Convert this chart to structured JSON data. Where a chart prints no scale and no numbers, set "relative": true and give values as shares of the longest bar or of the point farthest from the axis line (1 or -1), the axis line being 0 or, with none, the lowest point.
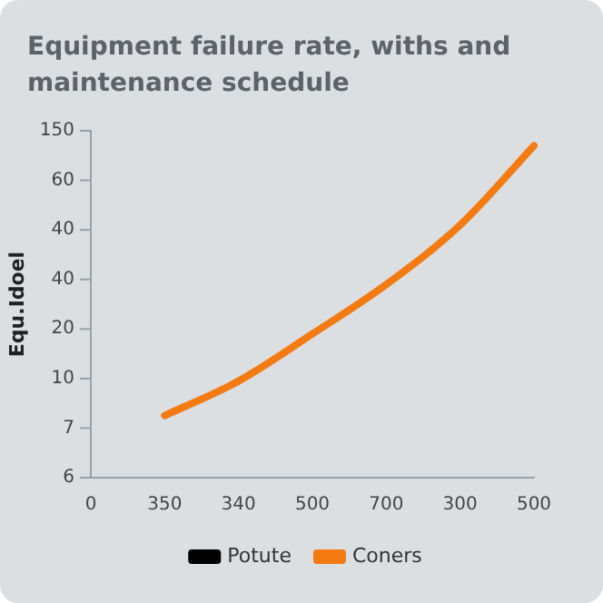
{
  "chart_data": {
    "type": "line",
    "title": "Equipment failure rate, withs and maintenance schedule",
    "ylabel": "Equ.Idoel",
    "categories": [
      "0",
      "350",
      "340",
      "500",
      "700",
      "300",
      "500"
    ],
    "series": [
      {
        "name": "Potute",
        "color": "#000000",
        "values": [
          null,
          null,
          null,
          null,
          null,
          null,
          null
        ]
      },
      {
        "name": "Coners",
        "color": "#f47b12",
        "values": [
          null,
          0.187,
          0.291,
          0.433,
          0.582,
          0.761,
          1
        ]
      }
    ],
    "relative": true,
    "annotations": [
      "150",
      "60",
      "40",
      "40",
      "20",
      "10",
      "7",
      "6"
    ],
    "grid": false,
    "legend": "bottom",
    "marker": "none",
    "line_style": "solid"
  }
}
